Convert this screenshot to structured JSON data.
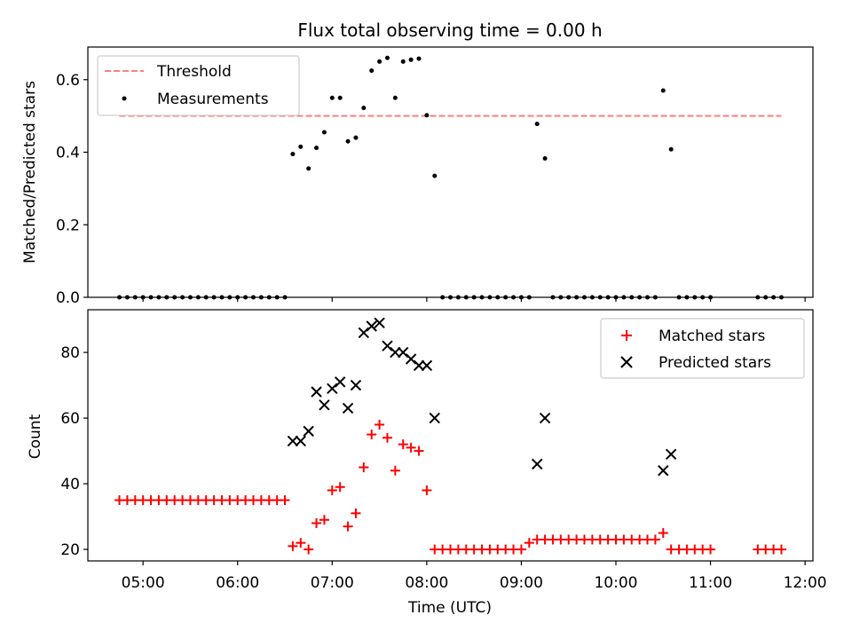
{
  "chart_data": [
    {
      "type": "scatter",
      "title": "Flux total observing time = 0.00 h",
      "ylabel": "Matched/Predicted stars",
      "xlabel": "",
      "xlim": [
        "04:25",
        "12:05"
      ],
      "ylim": [
        0,
        0.69
      ],
      "yticks": [
        0.0,
        0.2,
        0.4,
        0.6
      ],
      "ytick_labels": [
        "0.0",
        "0.2",
        "0.4",
        "0.6"
      ],
      "legend_position": "top-left",
      "colors": {
        "threshold": "#ff7f7f",
        "measurements": "#000000"
      },
      "threshold": {
        "name": "Threshold",
        "y": 0.5,
        "x_range": [
          "04:45",
          "11:45"
        ]
      },
      "series": [
        {
          "name": "Measurements",
          "x": [
            "04:45",
            "04:50",
            "04:55",
            "05:00",
            "05:05",
            "05:10",
            "05:15",
            "05:20",
            "05:25",
            "05:30",
            "05:35",
            "05:40",
            "05:45",
            "05:50",
            "05:55",
            "06:00",
            "06:05",
            "06:10",
            "06:15",
            "06:20",
            "06:25",
            "06:30",
            "06:35",
            "06:40",
            "06:45",
            "06:50",
            "06:55",
            "07:00",
            "07:05",
            "07:10",
            "07:15",
            "07:20",
            "07:25",
            "07:30",
            "07:35",
            "07:40",
            "07:45",
            "07:50",
            "07:55",
            "08:00",
            "08:05",
            "08:10",
            "08:15",
            "08:20",
            "08:25",
            "08:30",
            "08:35",
            "08:40",
            "08:45",
            "08:50",
            "08:55",
            "09:00",
            "09:05",
            "09:10",
            "09:15",
            "09:20",
            "09:25",
            "09:30",
            "09:35",
            "09:40",
            "09:45",
            "09:50",
            "09:55",
            "10:00",
            "10:05",
            "10:10",
            "10:15",
            "10:20",
            "10:25",
            "10:30",
            "10:35",
            "10:40",
            "10:45",
            "10:50",
            "10:55",
            "11:00",
            "11:30",
            "11:35",
            "11:40",
            "11:45"
          ],
          "y": [
            0,
            0,
            0,
            0,
            0,
            0,
            0,
            0,
            0,
            0,
            0,
            0,
            0,
            0,
            0,
            0,
            0,
            0,
            0,
            0,
            0,
            0,
            0.395,
            0.415,
            0.355,
            0.412,
            0.455,
            0.55,
            0.55,
            0.43,
            0.44,
            0.522,
            0.625,
            0.65,
            0.66,
            0.55,
            0.65,
            0.655,
            0.658,
            0.502,
            0.335,
            0,
            0,
            0,
            0,
            0,
            0,
            0,
            0,
            0,
            0,
            0,
            0,
            0.478,
            0.383,
            0,
            0,
            0,
            0,
            0,
            0,
            0,
            0,
            0,
            0,
            0,
            0,
            0,
            0,
            0.57,
            0.408,
            0,
            0,
            0,
            0,
            0,
            0,
            0,
            0,
            0
          ]
        }
      ]
    },
    {
      "type": "scatter",
      "title": "",
      "ylabel": "Count",
      "xlabel": "Time (UTC)",
      "xlim": [
        "04:25",
        "12:05"
      ],
      "xticks": [
        "05:00",
        "06:00",
        "07:00",
        "08:00",
        "09:00",
        "10:00",
        "11:00",
        "12:00"
      ],
      "ylim": [
        16.5,
        93
      ],
      "yticks": [
        20,
        40,
        60,
        80
      ],
      "legend_position": "top-right",
      "colors": {
        "matched": "#ff0000",
        "predicted": "#000000"
      },
      "series": [
        {
          "name": "Matched stars",
          "x": [
            "04:45",
            "04:50",
            "04:55",
            "05:00",
            "05:05",
            "05:10",
            "05:15",
            "05:20",
            "05:25",
            "05:30",
            "05:35",
            "05:40",
            "05:45",
            "05:50",
            "05:55",
            "06:00",
            "06:05",
            "06:10",
            "06:15",
            "06:20",
            "06:25",
            "06:30",
            "06:35",
            "06:40",
            "06:45",
            "06:50",
            "06:55",
            "07:00",
            "07:05",
            "07:10",
            "07:15",
            "07:20",
            "07:25",
            "07:30",
            "07:35",
            "07:40",
            "07:45",
            "07:50",
            "07:55",
            "08:00",
            "08:05",
            "08:10",
            "08:15",
            "08:20",
            "08:25",
            "08:30",
            "08:35",
            "08:40",
            "08:45",
            "08:50",
            "08:55",
            "09:00",
            "09:05",
            "09:10",
            "09:15",
            "09:20",
            "09:25",
            "09:30",
            "09:35",
            "09:40",
            "09:45",
            "09:50",
            "09:55",
            "10:00",
            "10:05",
            "10:10",
            "10:15",
            "10:20",
            "10:25",
            "10:30",
            "10:35",
            "10:40",
            "10:45",
            "10:50",
            "10:55",
            "11:00",
            "11:30",
            "11:35",
            "11:40",
            "11:45"
          ],
          "y": [
            35,
            35,
            35,
            35,
            35,
            35,
            35,
            35,
            35,
            35,
            35,
            35,
            35,
            35,
            35,
            35,
            35,
            35,
            35,
            35,
            35,
            35,
            21,
            22,
            20,
            28,
            29,
            38,
            39,
            27,
            31,
            45,
            55,
            58,
            54,
            44,
            52,
            51,
            50,
            38,
            20,
            20,
            20,
            20,
            20,
            20,
            20,
            20,
            20,
            20,
            20,
            20,
            22,
            23,
            23,
            23,
            23,
            23,
            23,
            23,
            23,
            23,
            23,
            23,
            23,
            23,
            23,
            23,
            23,
            25,
            20,
            20,
            20,
            20,
            20,
            20,
            20,
            20,
            20,
            20
          ]
        },
        {
          "name": "Predicted stars",
          "x": [
            "06:35",
            "06:40",
            "06:45",
            "06:50",
            "06:55",
            "07:00",
            "07:05",
            "07:10",
            "07:15",
            "07:20",
            "07:25",
            "07:30",
            "07:35",
            "07:40",
            "07:45",
            "07:50",
            "07:55",
            "08:00",
            "08:05",
            "09:10",
            "09:15",
            "10:30",
            "10:35"
          ],
          "y": [
            53,
            53,
            56,
            68,
            64,
            69,
            71,
            63,
            70,
            86,
            88,
            89,
            82,
            80,
            80,
            78,
            76,
            76,
            60,
            46,
            60,
            44,
            49
          ]
        }
      ]
    }
  ]
}
